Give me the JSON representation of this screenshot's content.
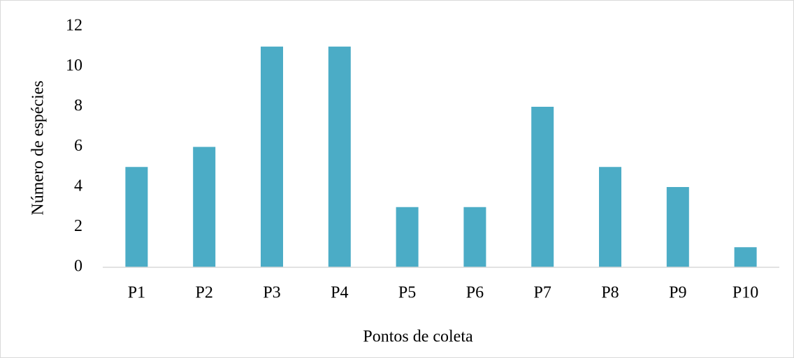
{
  "chart_data": {
    "type": "bar",
    "categories": [
      "P1",
      "P2",
      "P3",
      "P4",
      "P5",
      "P6",
      "P7",
      "P8",
      "P9",
      "P10"
    ],
    "values": [
      5,
      6,
      11,
      11,
      3,
      3,
      8,
      5,
      4,
      1
    ],
    "color": "#4bacc6",
    "x_label": "Pontos de coleta",
    "y_label": "Número de espécies",
    "ylim": [
      0,
      12
    ],
    "yticks": [
      0,
      2,
      4,
      6,
      8,
      10,
      12
    ],
    "grid": false
  }
}
